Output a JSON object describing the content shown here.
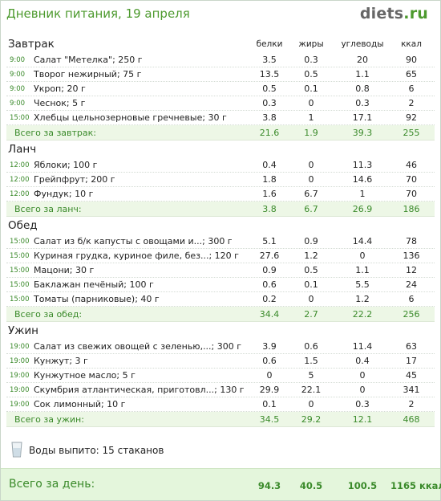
{
  "header": {
    "title": "Дневник питания, 19 апреля",
    "logo_main": "diets",
    "logo_suffix": ".ru"
  },
  "columns": {
    "proteins": "белки",
    "fats": "жиры",
    "carbs": "углеводы",
    "kcal": "ккал"
  },
  "meals": [
    {
      "name": "Завтрак",
      "items": [
        {
          "time": "9:00",
          "food": "Салат \"Метелка\"; 250 г",
          "p": "3.5",
          "f": "0.3",
          "c": "20",
          "k": "90"
        },
        {
          "time": "9:00",
          "food": "Творог нежирный; 75 г",
          "p": "13.5",
          "f": "0.5",
          "c": "1.1",
          "k": "65"
        },
        {
          "time": "9:00",
          "food": "Укроп; 20 г",
          "p": "0.5",
          "f": "0.1",
          "c": "0.8",
          "k": "6"
        },
        {
          "time": "9:00",
          "food": "Чеснок; 5 г",
          "p": "0.3",
          "f": "0",
          "c": "0.3",
          "k": "2"
        },
        {
          "time": "15:00",
          "food": "Хлебцы цельнозерновые гречневые; 30 г",
          "p": "3.8",
          "f": "1",
          "c": "17.1",
          "k": "92"
        }
      ],
      "total_label": "Всего за завтрак:",
      "total": {
        "p": "21.6",
        "f": "1.9",
        "c": "39.3",
        "k": "255"
      }
    },
    {
      "name": "Ланч",
      "items": [
        {
          "time": "12:00",
          "food": "Яблоки; 100 г",
          "p": "0.4",
          "f": "0",
          "c": "11.3",
          "k": "46"
        },
        {
          "time": "12:00",
          "food": "Грейпфрут; 200 г",
          "p": "1.8",
          "f": "0",
          "c": "14.6",
          "k": "70"
        },
        {
          "time": "12:00",
          "food": "Фундук; 10 г",
          "p": "1.6",
          "f": "6.7",
          "c": "1",
          "k": "70"
        }
      ],
      "total_label": "Всего за ланч:",
      "total": {
        "p": "3.8",
        "f": "6.7",
        "c": "26.9",
        "k": "186"
      }
    },
    {
      "name": "Обед",
      "items": [
        {
          "time": "15:00",
          "food": "Салат из б/к капусты с овощами и...; 300 г",
          "p": "5.1",
          "f": "0.9",
          "c": "14.4",
          "k": "78"
        },
        {
          "time": "15:00",
          "food": "Куриная грудка, куриное филе, без...; 120 г",
          "p": "27.6",
          "f": "1.2",
          "c": "0",
          "k": "136"
        },
        {
          "time": "15:00",
          "food": "Мацони; 30 г",
          "p": "0.9",
          "f": "0.5",
          "c": "1.1",
          "k": "12"
        },
        {
          "time": "15:00",
          "food": "Баклажан печёный; 100 г",
          "p": "0.6",
          "f": "0.1",
          "c": "5.5",
          "k": "24"
        },
        {
          "time": "15:00",
          "food": "Томаты (парниковые); 40 г",
          "p": "0.2",
          "f": "0",
          "c": "1.2",
          "k": "6"
        }
      ],
      "total_label": "Всего за обед:",
      "total": {
        "p": "34.4",
        "f": "2.7",
        "c": "22.2",
        "k": "256"
      }
    },
    {
      "name": "Ужин",
      "items": [
        {
          "time": "19:00",
          "food": "Салат из свежих овощей с зеленью,...; 300 г",
          "p": "3.9",
          "f": "0.6",
          "c": "11.4",
          "k": "63"
        },
        {
          "time": "19:00",
          "food": "Кунжут; 3 г",
          "p": "0.6",
          "f": "1.5",
          "c": "0.4",
          "k": "17"
        },
        {
          "time": "19:00",
          "food": "Кунжутное масло; 5 г",
          "p": "0",
          "f": "5",
          "c": "0",
          "k": "45"
        },
        {
          "time": "19:00",
          "food": "Скумбрия атлантическая, приготовл...; 130 г",
          "p": "29.9",
          "f": "22.1",
          "c": "0",
          "k": "341"
        },
        {
          "time": "19:00",
          "food": "Сок лимонный; 10 г",
          "p": "0.1",
          "f": "0",
          "c": "0.3",
          "k": "2"
        }
      ],
      "total_label": "Всего за ужин:",
      "total": {
        "p": "34.5",
        "f": "29.2",
        "c": "12.1",
        "k": "468"
      }
    }
  ],
  "water": {
    "icon": "water-glass-icon",
    "text": "Воды выпито: 15 стаканов"
  },
  "day_total": {
    "label": "Всего за день:",
    "p": "94.3",
    "f": "40.5",
    "c": "100.5",
    "k": "1165 ккал"
  },
  "colors": {
    "accent_green": "#3a8a2a",
    "title_green": "#4d9a2e",
    "total_bg": "#edf7e6",
    "day_bg": "#e4f6dc"
  }
}
